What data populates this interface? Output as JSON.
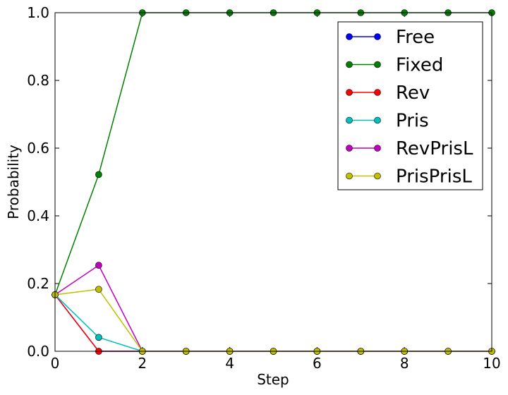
{
  "chart_data": {
    "type": "line",
    "title": "",
    "xlabel": "Step",
    "ylabel": "Probability",
    "xlim": [
      0,
      10
    ],
    "ylim": [
      0,
      1.0
    ],
    "xticks": [
      "0",
      "2",
      "4",
      "6",
      "8",
      "10"
    ],
    "yticks": [
      "0.0",
      "0.2",
      "0.4",
      "0.6",
      "0.8",
      "1.0"
    ],
    "grid": false,
    "legend_position": "top-right",
    "x": [
      0,
      1,
      2,
      3,
      4,
      5,
      6,
      7,
      8,
      9,
      10
    ],
    "series": [
      {
        "name": "Free",
        "color": "#0000ff",
        "values": [
          0.167,
          0,
          0,
          0,
          0,
          0,
          0,
          0,
          0,
          0,
          0
        ]
      },
      {
        "name": "Fixed",
        "color": "#008000",
        "values": [
          0.167,
          0.522,
          1.0,
          1.0,
          1.0,
          1.0,
          1.0,
          1.0,
          1.0,
          1.0,
          1.0
        ]
      },
      {
        "name": "Rev",
        "color": "#ff0000",
        "values": [
          0.167,
          0,
          0,
          0,
          0,
          0,
          0,
          0,
          0,
          0,
          0
        ]
      },
      {
        "name": "Pris",
        "color": "#00bfbf",
        "values": [
          0.167,
          0.041,
          0,
          0,
          0,
          0,
          0,
          0,
          0,
          0,
          0
        ]
      },
      {
        "name": "RevPrisL",
        "color": "#bf00bf",
        "values": [
          0.167,
          0.254,
          0,
          0,
          0,
          0,
          0,
          0,
          0,
          0,
          0
        ]
      },
      {
        "name": "PrisPrisL",
        "color": "#bfbf00",
        "values": [
          0.167,
          0.183,
          0,
          0,
          0,
          0,
          0,
          0,
          0,
          0,
          0
        ]
      }
    ]
  }
}
